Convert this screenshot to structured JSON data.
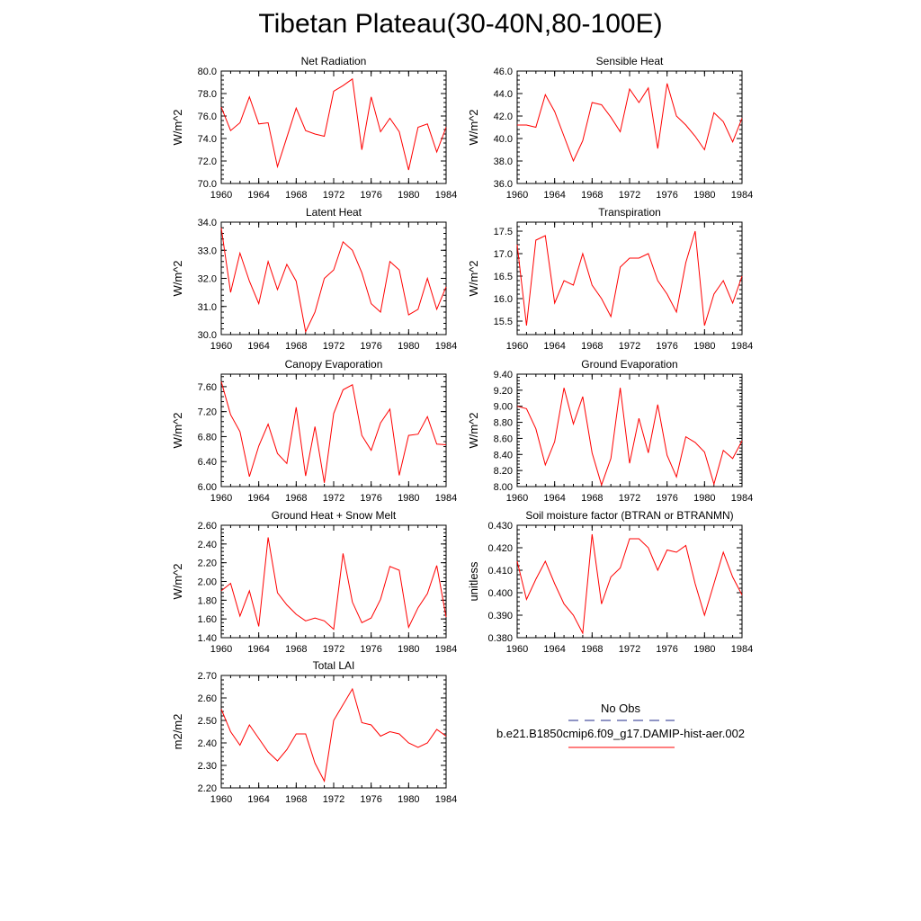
{
  "title": "Tibetan Plateau(30-40N,80-100E)",
  "colors": {
    "series": "#ff0000",
    "obs": "#1f2a8a"
  },
  "legend": {
    "obs_label": "No Obs",
    "model_label": "b.e21.B1850cmip6.f09_g17.DAMIP-hist-aer.002"
  },
  "chart_data": [
    {
      "type": "line",
      "title": "Net Radiation",
      "ylabel": "W/m^2",
      "ylim": [
        70.0,
        80.0
      ],
      "yticks": [
        70.0,
        72.0,
        74.0,
        76.0,
        78.0,
        80.0
      ],
      "ydec": 1,
      "xlim": [
        1960,
        1984
      ],
      "xticks": [
        1960,
        1964,
        1968,
        1972,
        1976,
        1980,
        1984
      ],
      "x": [
        1960,
        1961,
        1962,
        1963,
        1964,
        1965,
        1966,
        1967,
        1968,
        1969,
        1970,
        1971,
        1972,
        1973,
        1974,
        1975,
        1976,
        1977,
        1978,
        1979,
        1980,
        1981,
        1982,
        1983,
        1984
      ],
      "series": [
        {
          "values": [
            76.8,
            74.7,
            75.4,
            77.7,
            75.3,
            75.4,
            71.5,
            74.1,
            76.7,
            74.7,
            74.4,
            74.2,
            78.2,
            78.7,
            79.3,
            73.0,
            77.7,
            74.6,
            75.8,
            74.6,
            71.2,
            75.0,
            75.3,
            72.8,
            75.0
          ]
        }
      ]
    },
    {
      "type": "line",
      "title": "Sensible Heat",
      "ylabel": "W/m^2",
      "ylim": [
        36.0,
        46.0
      ],
      "yticks": [
        36.0,
        38.0,
        40.0,
        42.0,
        44.0,
        46.0
      ],
      "ydec": 1,
      "xlim": [
        1960,
        1984
      ],
      "xticks": [
        1960,
        1964,
        1968,
        1972,
        1976,
        1980,
        1984
      ],
      "x": [
        1960,
        1961,
        1962,
        1963,
        1964,
        1965,
        1966,
        1967,
        1968,
        1969,
        1970,
        1971,
        1972,
        1973,
        1974,
        1975,
        1976,
        1977,
        1978,
        1979,
        1980,
        1981,
        1982,
        1983,
        1984
      ],
      "series": [
        {
          "values": [
            41.2,
            41.2,
            41.0,
            43.9,
            42.4,
            40.2,
            38.0,
            39.8,
            43.2,
            43.0,
            41.9,
            40.6,
            44.4,
            43.2,
            44.5,
            39.1,
            44.9,
            42.0,
            41.2,
            40.2,
            39.0,
            42.3,
            41.5,
            39.7,
            41.8
          ]
        }
      ]
    },
    {
      "type": "line",
      "title": "Latent Heat",
      "ylabel": "W/m^2",
      "ylim": [
        30.0,
        34.0
      ],
      "yticks": [
        30.0,
        31.0,
        32.0,
        33.0,
        34.0
      ],
      "ydec": 1,
      "xlim": [
        1960,
        1984
      ],
      "xticks": [
        1960,
        1964,
        1968,
        1972,
        1976,
        1980,
        1984
      ],
      "x": [
        1960,
        1961,
        1962,
        1963,
        1964,
        1965,
        1966,
        1967,
        1968,
        1969,
        1970,
        1971,
        1972,
        1973,
        1974,
        1975,
        1976,
        1977,
        1978,
        1979,
        1980,
        1981,
        1982,
        1983,
        1984
      ],
      "series": [
        {
          "values": [
            33.8,
            31.5,
            32.9,
            31.9,
            31.1,
            32.6,
            31.6,
            32.5,
            31.9,
            30.1,
            30.8,
            32.0,
            32.3,
            33.3,
            33.0,
            32.2,
            31.1,
            30.8,
            32.6,
            32.3,
            30.7,
            30.9,
            32.0,
            30.9,
            31.7
          ]
        }
      ]
    },
    {
      "type": "line",
      "title": "Transpiration",
      "ylabel": "W/m^2",
      "ylim": [
        15.2,
        17.7
      ],
      "yticks": [
        15.5,
        16.0,
        16.5,
        17.0,
        17.5
      ],
      "ydec": 1,
      "xlim": [
        1960,
        1984
      ],
      "xticks": [
        1960,
        1964,
        1968,
        1972,
        1976,
        1980,
        1984
      ],
      "x": [
        1960,
        1961,
        1962,
        1963,
        1964,
        1965,
        1966,
        1967,
        1968,
        1969,
        1970,
        1971,
        1972,
        1973,
        1974,
        1975,
        1976,
        1977,
        1978,
        1979,
        1980,
        1981,
        1982,
        1983,
        1984
      ],
      "series": [
        {
          "values": [
            17.2,
            15.4,
            17.3,
            17.4,
            15.9,
            16.4,
            16.3,
            17.0,
            16.3,
            16.0,
            15.6,
            16.7,
            16.9,
            16.9,
            17.0,
            16.4,
            16.1,
            15.7,
            16.8,
            17.5,
            15.4,
            16.1,
            16.4,
            15.9,
            16.5
          ]
        }
      ]
    },
    {
      "type": "line",
      "title": "Canopy Evaporation",
      "ylabel": "W/m^2",
      "ylim": [
        6.0,
        7.8
      ],
      "yticks": [
        6.0,
        6.4,
        6.8,
        7.2,
        7.6
      ],
      "ydec": 2,
      "xlim": [
        1960,
        1984
      ],
      "xticks": [
        1960,
        1964,
        1968,
        1972,
        1976,
        1980,
        1984
      ],
      "x": [
        1960,
        1961,
        1962,
        1963,
        1964,
        1965,
        1966,
        1967,
        1968,
        1969,
        1970,
        1971,
        1972,
        1973,
        1974,
        1975,
        1976,
        1977,
        1978,
        1979,
        1980,
        1981,
        1982,
        1983,
        1984
      ],
      "series": [
        {
          "values": [
            7.68,
            7.15,
            6.88,
            6.16,
            6.65,
            7.0,
            6.53,
            6.37,
            7.27,
            6.17,
            6.96,
            6.06,
            7.17,
            7.55,
            7.63,
            6.82,
            6.58,
            7.02,
            7.24,
            6.18,
            6.82,
            6.84,
            7.12,
            6.68,
            6.67
          ]
        }
      ]
    },
    {
      "type": "line",
      "title": "Ground Evaporation",
      "ylabel": "W/m^2",
      "ylim": [
        8.0,
        9.4
      ],
      "yticks": [
        8.0,
        8.2,
        8.4,
        8.6,
        8.8,
        9.0,
        9.2,
        9.4
      ],
      "ydec": 2,
      "xlim": [
        1960,
        1984
      ],
      "xticks": [
        1960,
        1964,
        1968,
        1972,
        1976,
        1980,
        1984
      ],
      "x": [
        1960,
        1961,
        1962,
        1963,
        1964,
        1965,
        1966,
        1967,
        1968,
        1969,
        1970,
        1971,
        1972,
        1973,
        1974,
        1975,
        1976,
        1977,
        1978,
        1979,
        1980,
        1981,
        1982,
        1983,
        1984
      ],
      "series": [
        {
          "values": [
            9.0,
            8.97,
            8.72,
            8.27,
            8.56,
            9.23,
            8.78,
            9.12,
            8.42,
            8.02,
            8.35,
            9.23,
            8.29,
            8.85,
            8.42,
            9.02,
            8.39,
            8.12,
            8.62,
            8.55,
            8.43,
            8.03,
            8.45,
            8.35,
            8.57
          ]
        }
      ]
    },
    {
      "type": "line",
      "title": "Ground Heat + Snow Melt",
      "ylabel": "W/m^2",
      "ylim": [
        1.4,
        2.6
      ],
      "yticks": [
        1.4,
        1.6,
        1.8,
        2.0,
        2.2,
        2.4,
        2.6
      ],
      "ydec": 2,
      "xlim": [
        1960,
        1984
      ],
      "xticks": [
        1960,
        1964,
        1968,
        1972,
        1976,
        1980,
        1984
      ],
      "x": [
        1960,
        1961,
        1962,
        1963,
        1964,
        1965,
        1966,
        1967,
        1968,
        1969,
        1970,
        1971,
        1972,
        1973,
        1974,
        1975,
        1976,
        1977,
        1978,
        1979,
        1980,
        1981,
        1982,
        1983,
        1984
      ],
      "series": [
        {
          "values": [
            1.9,
            1.98,
            1.63,
            1.9,
            1.52,
            2.47,
            1.88,
            1.75,
            1.65,
            1.58,
            1.61,
            1.58,
            1.49,
            2.3,
            1.78,
            1.56,
            1.61,
            1.81,
            2.16,
            2.12,
            1.51,
            1.72,
            1.87,
            2.17,
            1.62
          ]
        }
      ]
    },
    {
      "type": "line",
      "title": "Soil moisture factor (BTRAN or BTRANMN)",
      "ylabel": "unitless",
      "ylim": [
        0.38,
        0.43
      ],
      "yticks": [
        0.38,
        0.39,
        0.4,
        0.41,
        0.42,
        0.43
      ],
      "ydec": 3,
      "xlim": [
        1960,
        1984
      ],
      "xticks": [
        1960,
        1964,
        1968,
        1972,
        1976,
        1980,
        1984
      ],
      "x": [
        1960,
        1961,
        1962,
        1963,
        1964,
        1965,
        1966,
        1967,
        1968,
        1969,
        1970,
        1971,
        1972,
        1973,
        1974,
        1975,
        1976,
        1977,
        1978,
        1979,
        1980,
        1981,
        1982,
        1983,
        1984
      ],
      "series": [
        {
          "values": [
            0.414,
            0.397,
            0.406,
            0.414,
            0.404,
            0.395,
            0.39,
            0.382,
            0.426,
            0.395,
            0.407,
            0.411,
            0.424,
            0.424,
            0.42,
            0.41,
            0.419,
            0.418,
            0.421,
            0.404,
            0.39,
            0.404,
            0.418,
            0.407,
            0.399
          ]
        }
      ]
    },
    {
      "type": "line",
      "title": "Total LAI",
      "ylabel": "m2/m2",
      "ylim": [
        2.2,
        2.7
      ],
      "yticks": [
        2.2,
        2.3,
        2.4,
        2.5,
        2.6,
        2.7
      ],
      "ydec": 2,
      "xlim": [
        1960,
        1984
      ],
      "xticks": [
        1960,
        1964,
        1968,
        1972,
        1976,
        1980,
        1984
      ],
      "x": [
        1960,
        1961,
        1962,
        1963,
        1964,
        1965,
        1966,
        1967,
        1968,
        1969,
        1970,
        1971,
        1972,
        1973,
        1974,
        1975,
        1976,
        1977,
        1978,
        1979,
        1980,
        1981,
        1982,
        1983,
        1984
      ],
      "series": [
        {
          "values": [
            2.55,
            2.45,
            2.39,
            2.48,
            2.42,
            2.36,
            2.32,
            2.37,
            2.44,
            2.44,
            2.31,
            2.23,
            2.5,
            2.57,
            2.64,
            2.49,
            2.48,
            2.43,
            2.45,
            2.44,
            2.4,
            2.38,
            2.4,
            2.46,
            2.43
          ]
        }
      ]
    }
  ]
}
